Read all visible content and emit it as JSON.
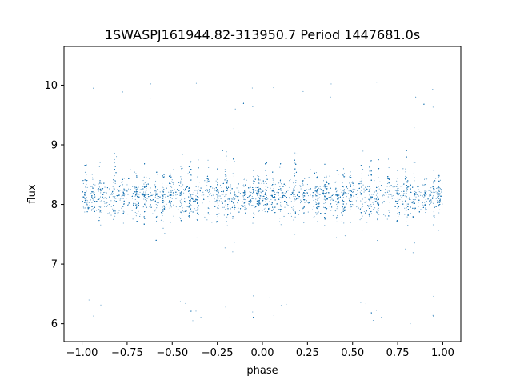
{
  "chart_data": {
    "type": "scatter",
    "title": "1SWASPJ161944.82-313950.7 Period 1447681.0s",
    "xlabel": "phase",
    "ylabel": "flux",
    "xlim": [
      -1.1,
      1.1
    ],
    "ylim": [
      5.7,
      10.65
    ],
    "xticks": [
      -1.0,
      -0.75,
      -0.5,
      -0.25,
      0.0,
      0.25,
      0.5,
      0.75,
      1.0
    ],
    "xtick_labels": [
      "−1.00",
      "−0.75",
      "−0.50",
      "−0.25",
      "0.00",
      "0.25",
      "0.50",
      "0.75",
      "1.00"
    ],
    "yticks": [
      6,
      7,
      8,
      9,
      10
    ],
    "ytick_labels": [
      "6",
      "7",
      "8",
      "9",
      "10"
    ],
    "grid": false,
    "point_color": "#1f77b4",
    "series": [
      {
        "points_summary": "dense band of flux ~7.6-8.7 across phase -1.0 to 1.0, with vertical streaks reaching ~6 and ~10.3 (periodic with period 1 in phase)",
        "x": [
          -0.98,
          -0.95,
          -0.92,
          -0.88,
          -0.85,
          -0.82,
          -0.78,
          -0.72,
          -0.68,
          -0.62,
          -0.58,
          -0.55,
          -0.5,
          -0.45,
          -0.42,
          -0.38,
          -0.32,
          -0.28,
          -0.22,
          -0.18,
          -0.15,
          -0.1,
          -0.05,
          0.0,
          0.02,
          0.05,
          0.08,
          0.12,
          0.15,
          0.18,
          0.22,
          0.28,
          0.32,
          0.38,
          0.42,
          0.45,
          0.5,
          0.55,
          0.58,
          0.62,
          0.68,
          0.72,
          0.78,
          0.82,
          0.85,
          0.9,
          0.95,
          0.98
        ],
        "y": [
          8.1,
          8.3,
          7.9,
          8.2,
          8.0,
          8.4,
          8.1,
          8.3,
          7.8,
          8.2,
          8.5,
          7.6,
          8.1,
          8.6,
          7.9,
          8.2,
          8.4,
          7.7,
          8.9,
          6.1,
          9.6,
          8.2,
          8.1,
          7.9,
          8.3,
          8.0,
          8.2,
          7.8,
          8.4,
          7.5,
          8.1,
          8.2,
          8.3,
          7.9,
          8.5,
          8.6,
          8.0,
          8.3,
          7.7,
          8.4,
          8.2,
          8.1,
          8.6,
          6.0,
          9.8,
          8.2,
          8.3,
          8.1
        ]
      }
    ]
  }
}
